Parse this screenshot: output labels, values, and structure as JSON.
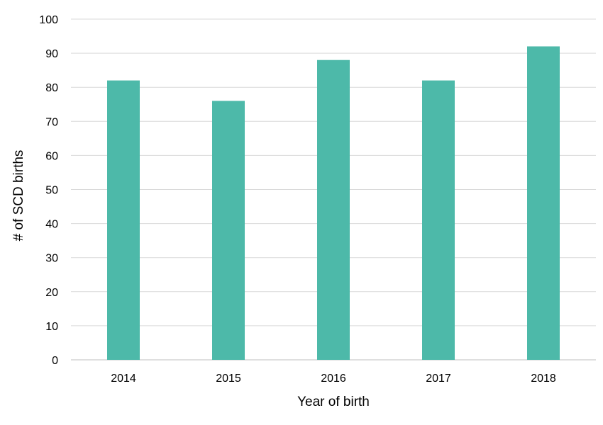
{
  "chart_data": {
    "type": "bar",
    "title": "",
    "xlabel": "Year of birth",
    "ylabel": "# of SCD births",
    "categories": [
      "2014",
      "2015",
      "2016",
      "2017",
      "2018"
    ],
    "values": [
      82,
      76,
      88,
      82,
      92
    ],
    "ylim": [
      0,
      100
    ],
    "yticks": [
      0,
      10,
      20,
      30,
      40,
      50,
      60,
      70,
      80,
      90,
      100
    ],
    "bar_color": "#4db9a9",
    "grid": true,
    "legend": "none"
  }
}
